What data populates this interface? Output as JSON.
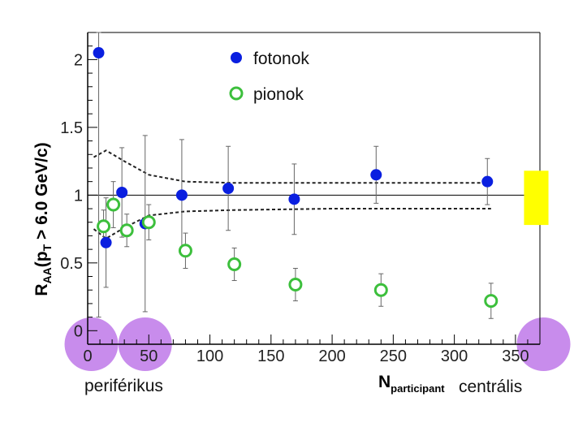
{
  "chart_data": {
    "type": "scatter",
    "ylabel": "R",
    "ylabel_sub": "AA",
    "ylabel_paren": "(p",
    "ylabel_sub2": "T",
    "ylabel_rest": " > 6.0 GeV/c)",
    "xlabel": "N",
    "xlabel_sub": "participant",
    "xlim": [
      0,
      370
    ],
    "ylim": [
      -0.1,
      2.2
    ],
    "x_ticks": [
      0,
      50,
      100,
      150,
      200,
      250,
      300,
      350
    ],
    "y_ticks": [
      0,
      0.5,
      1,
      1.5,
      2
    ],
    "x_tick_labels": [
      "0",
      "50",
      "100",
      "150",
      "200",
      "250",
      "300",
      "350"
    ],
    "y_tick_labels": [
      "0",
      "0.5",
      "1",
      "1.5",
      "2"
    ],
    "reference_line": 1,
    "series": [
      {
        "name": "fotonok",
        "color": "#0a1fe0",
        "marker": "filled-circle",
        "points": [
          {
            "x": 9,
            "y": 2.05,
            "err": 1.95
          },
          {
            "x": 15,
            "y": 0.65,
            "err": 0.33
          },
          {
            "x": 28,
            "y": 1.02,
            "err": 0.33
          },
          {
            "x": 47,
            "y": 0.79,
            "err": 0.65
          },
          {
            "x": 77,
            "y": 1.0,
            "err": 0.41
          },
          {
            "x": 115,
            "y": 1.05,
            "err": 0.31
          },
          {
            "x": 169,
            "y": 0.97,
            "err": 0.26
          },
          {
            "x": 236,
            "y": 1.15,
            "err": 0.21
          },
          {
            "x": 327,
            "y": 1.1,
            "err": 0.17
          }
        ]
      },
      {
        "name": "pionok",
        "color": "#3cbf3c",
        "marker": "open-circle",
        "points": [
          {
            "x": 13,
            "y": 0.77,
            "err": 0.12
          },
          {
            "x": 21,
            "y": 0.93,
            "err": 0.17
          },
          {
            "x": 32,
            "y": 0.74,
            "err": 0.12
          },
          {
            "x": 50,
            "y": 0.8,
            "err": 0.13
          },
          {
            "x": 80,
            "y": 0.59,
            "err": 0.13
          },
          {
            "x": 120,
            "y": 0.49,
            "err": 0.12
          },
          {
            "x": 170,
            "y": 0.34,
            "err": 0.12
          },
          {
            "x": 240,
            "y": 0.3,
            "err": 0.12
          },
          {
            "x": 330,
            "y": 0.22,
            "err": 0.13
          }
        ]
      }
    ],
    "band_upper": [
      [
        5,
        1.28
      ],
      [
        15,
        1.33
      ],
      [
        30,
        1.25
      ],
      [
        50,
        1.15
      ],
      [
        80,
        1.1
      ],
      [
        120,
        1.09
      ],
      [
        200,
        1.09
      ],
      [
        330,
        1.09
      ]
    ],
    "band_lower": [
      [
        5,
        0.75
      ],
      [
        15,
        0.68
      ],
      [
        30,
        0.76
      ],
      [
        50,
        0.85
      ],
      [
        80,
        0.88
      ],
      [
        120,
        0.89
      ],
      [
        200,
        0.9
      ],
      [
        330,
        0.9
      ]
    ],
    "sys_box": {
      "x0": 357,
      "x1": 377,
      "y0": 0.78,
      "y1": 1.18,
      "color": "#ffff00"
    },
    "highlights": [
      {
        "x": 3,
        "color": "#a340e0"
      },
      {
        "x": 47,
        "color": "#a340e0"
      },
      {
        "x": 373,
        "color": "#a340e0"
      }
    ],
    "annotations": {
      "left": "periférikus",
      "right": "centrális"
    },
    "legend_placement": "top-center"
  }
}
